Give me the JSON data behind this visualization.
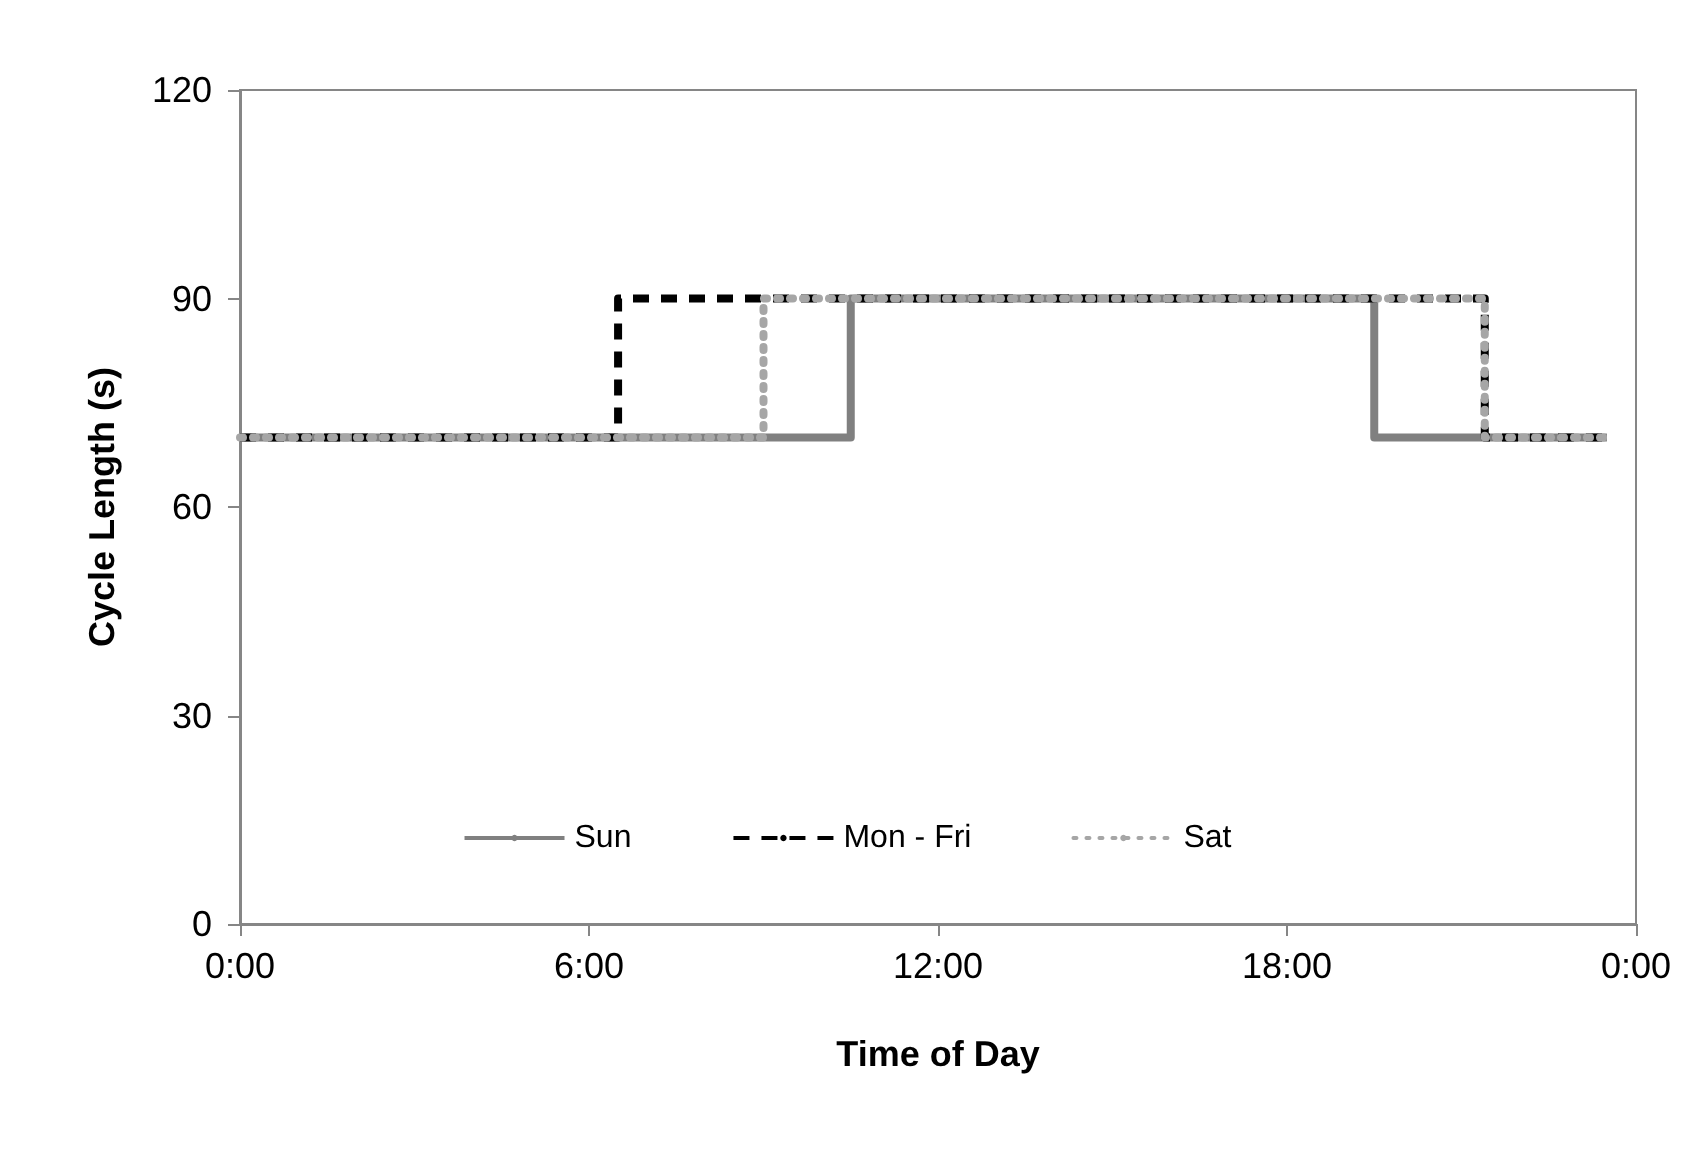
{
  "chart_data": {
    "type": "step",
    "xlabel": "Time of Day",
    "ylabel": "Cycle Length (s)",
    "xlim": [
      0,
      24
    ],
    "xticks": [
      {
        "value": 0,
        "label": "0:00"
      },
      {
        "value": 6,
        "label": "6:00"
      },
      {
        "value": 12,
        "label": "12:00"
      },
      {
        "value": 18,
        "label": "18:00"
      },
      {
        "value": 24,
        "label": "0:00"
      }
    ],
    "ylim": [
      0,
      120
    ],
    "yticks": [
      0,
      30,
      60,
      90,
      120
    ],
    "grid": false,
    "legend": "bottom",
    "marker": "none",
    "series": [
      {
        "name": "Sun",
        "color": "#808080",
        "line_style": "solid",
        "x": [
          0,
          10.5,
          19.5,
          23.5
        ],
        "values": [
          70,
          90,
          70,
          70
        ]
      },
      {
        "name": "Mon - Fri",
        "color": "#000000",
        "line_style": "dashed",
        "x": [
          0,
          6.5,
          21.4,
          23.5
        ],
        "values": [
          70,
          90,
          70,
          70
        ]
      },
      {
        "name": "Sat",
        "color": "#a6a6a6",
        "line_style": "dotted",
        "x": [
          0,
          9,
          21.4,
          23.5
        ],
        "values": [
          70,
          90,
          70,
          70
        ]
      }
    ]
  }
}
